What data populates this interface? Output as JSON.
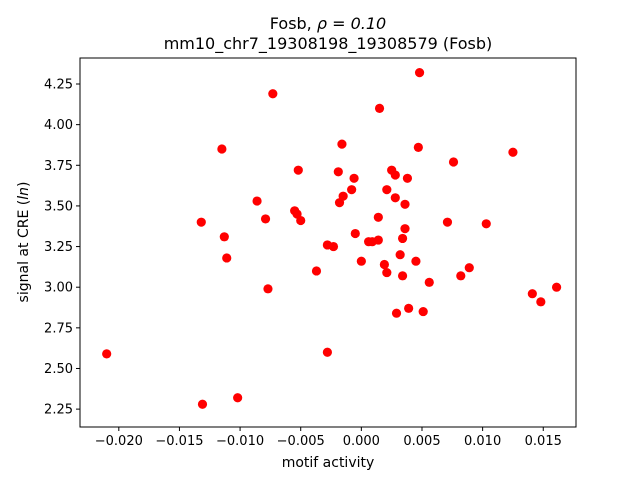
{
  "chart_data": {
    "type": "scatter",
    "title_line1_prefix": "Fosb, ",
    "title_line1_rho": "ρ = 0.10",
    "title_line2": "mm10_chr7_19308198_19308579 (Fosb)",
    "xlabel": "motif activity",
    "ylabel_prefix": "signal at CRE (",
    "ylabel_italic": "ln",
    "ylabel_suffix": ")",
    "xlim": [
      -0.0232,
      0.0177
    ],
    "ylim": [
      2.14,
      4.41
    ],
    "xticks": [
      -0.02,
      -0.015,
      -0.01,
      -0.005,
      0.0,
      0.005,
      0.01,
      0.015
    ],
    "xtick_labels": [
      "−0.020",
      "−0.015",
      "−0.010",
      "−0.005",
      "0.000",
      "0.005",
      "0.010",
      "0.015"
    ],
    "yticks": [
      2.25,
      2.5,
      2.75,
      3.0,
      3.25,
      3.5,
      3.75,
      4.0,
      4.25
    ],
    "ytick_labels": [
      "2.25",
      "2.50",
      "2.75",
      "3.00",
      "3.25",
      "3.50",
      "3.75",
      "4.00",
      "4.25"
    ],
    "grid": false,
    "marker_color": "#ff0000",
    "points": [
      {
        "x": -0.021,
        "y": 2.59
      },
      {
        "x": -0.0131,
        "y": 2.28
      },
      {
        "x": -0.0102,
        "y": 2.32
      },
      {
        "x": -0.0132,
        "y": 3.4
      },
      {
        "x": -0.0115,
        "y": 3.85
      },
      {
        "x": -0.0113,
        "y": 3.31
      },
      {
        "x": -0.0111,
        "y": 3.18
      },
      {
        "x": -0.0073,
        "y": 4.19
      },
      {
        "x": -0.0086,
        "y": 3.53
      },
      {
        "x": -0.0079,
        "y": 3.42
      },
      {
        "x": -0.0077,
        "y": 2.99
      },
      {
        "x": -0.0055,
        "y": 3.47
      },
      {
        "x": -0.0053,
        "y": 3.45
      },
      {
        "x": -0.0052,
        "y": 3.72
      },
      {
        "x": -0.005,
        "y": 3.41
      },
      {
        "x": -0.0037,
        "y": 3.1
      },
      {
        "x": -0.0028,
        "y": 3.26
      },
      {
        "x": -0.0028,
        "y": 2.6
      },
      {
        "x": -0.0023,
        "y": 3.25
      },
      {
        "x": -0.0019,
        "y": 3.71
      },
      {
        "x": -0.0018,
        "y": 3.52
      },
      {
        "x": -0.0016,
        "y": 3.88
      },
      {
        "x": -0.0015,
        "y": 3.56
      },
      {
        "x": -0.0008,
        "y": 3.6
      },
      {
        "x": -0.0006,
        "y": 3.67
      },
      {
        "x": -0.0005,
        "y": 3.33
      },
      {
        "x": 0.0,
        "y": 3.16
      },
      {
        "x": 0.0006,
        "y": 3.28
      },
      {
        "x": 0.0009,
        "y": 3.28
      },
      {
        "x": 0.0014,
        "y": 3.29
      },
      {
        "x": 0.0014,
        "y": 3.43
      },
      {
        "x": 0.0015,
        "y": 4.1
      },
      {
        "x": 0.0019,
        "y": 3.14
      },
      {
        "x": 0.0021,
        "y": 3.09
      },
      {
        "x": 0.0021,
        "y": 3.6
      },
      {
        "x": 0.0025,
        "y": 3.72
      },
      {
        "x": 0.0028,
        "y": 3.55
      },
      {
        "x": 0.0028,
        "y": 3.69
      },
      {
        "x": 0.0029,
        "y": 2.84
      },
      {
        "x": 0.0032,
        "y": 3.2
      },
      {
        "x": 0.0034,
        "y": 3.07
      },
      {
        "x": 0.0034,
        "y": 3.3
      },
      {
        "x": 0.0036,
        "y": 3.51
      },
      {
        "x": 0.0036,
        "y": 3.36
      },
      {
        "x": 0.0038,
        "y": 3.67
      },
      {
        "x": 0.0039,
        "y": 2.87
      },
      {
        "x": 0.0045,
        "y": 3.16
      },
      {
        "x": 0.0047,
        "y": 3.86
      },
      {
        "x": 0.0048,
        "y": 4.32
      },
      {
        "x": 0.0051,
        "y": 2.85
      },
      {
        "x": 0.0056,
        "y": 3.03
      },
      {
        "x": 0.0071,
        "y": 3.4
      },
      {
        "x": 0.0076,
        "y": 3.77
      },
      {
        "x": 0.0082,
        "y": 3.07
      },
      {
        "x": 0.0089,
        "y": 3.12
      },
      {
        "x": 0.0103,
        "y": 3.39
      },
      {
        "x": 0.0125,
        "y": 3.83
      },
      {
        "x": 0.0141,
        "y": 2.96
      },
      {
        "x": 0.0148,
        "y": 2.91
      },
      {
        "x": 0.0161,
        "y": 3.0
      }
    ]
  }
}
